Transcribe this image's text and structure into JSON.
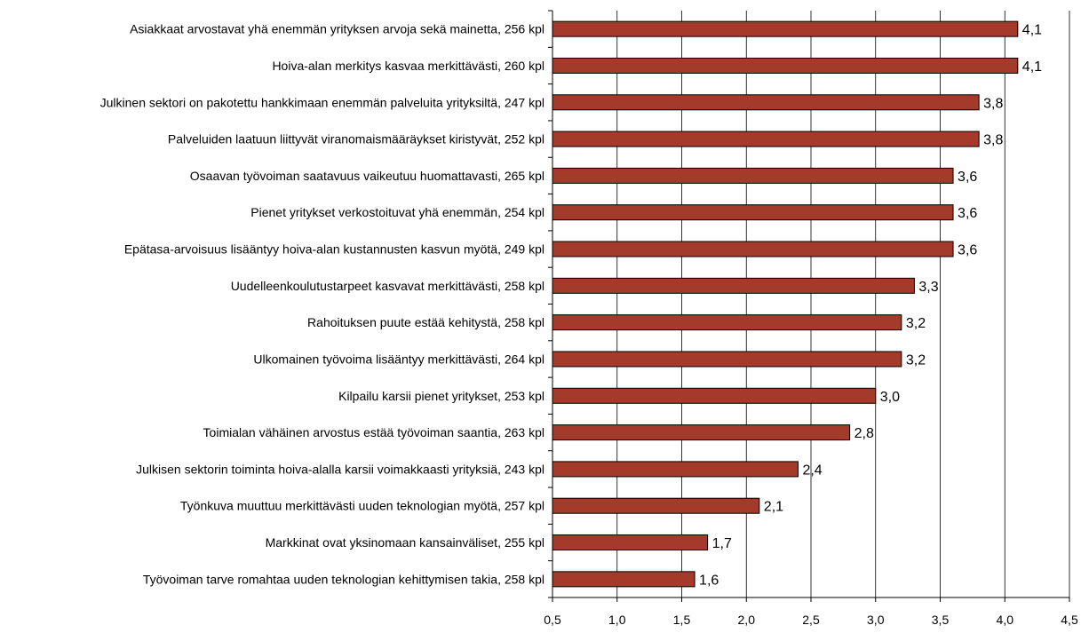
{
  "chart_data": {
    "type": "bar",
    "orientation": "horizontal",
    "title": "",
    "xlabel": "",
    "ylabel": "",
    "xlim": [
      0.5,
      4.5
    ],
    "x_ticks": [
      0.5,
      1.0,
      1.5,
      2.0,
      2.5,
      3.0,
      3.5,
      4.0,
      4.5
    ],
    "x_tick_labels": [
      "0,5",
      "1,0",
      "1,5",
      "2,0",
      "2,5",
      "3,0",
      "3,5",
      "4,0",
      "4,5"
    ],
    "grid": "vertical",
    "legend": "none",
    "bar_color": "#a33a2a",
    "bar_edge_color": "#000000",
    "categories": [
      "Asiakkaat arvostavat yhä enemmän yrityksen arvoja sekä mainetta, 256 kpl",
      "Hoiva-alan merkitys kasvaa merkittävästi, 260 kpl",
      "Julkinen sektori on pakotettu hankkimaan enemmän palveluita yrityksiltä, 247 kpl",
      "Palveluiden laatuun liittyvät viranomaismääräykset kiristyvät, 252 kpl",
      "Osaavan työvoiman saatavuus vaikeutuu huomattavasti, 265 kpl",
      "Pienet yritykset verkostoituvat yhä enemmän, 254 kpl",
      "Epätasa-arvoisuus lisääntyy hoiva-alan kustannusten kasvun myötä, 249 kpl",
      "Uudelleenkoulutustarpeet kasvavat merkittävästi, 258 kpl",
      "Rahoituksen puute estää kehitystä, 258 kpl",
      "Ulkomainen työvoima lisääntyy merkittävästi, 264 kpl",
      "Kilpailu karsii pienet yritykset, 253 kpl",
      "Toimialan vähäinen arvostus estää työvoiman saantia, 263 kpl",
      "Julkisen sektorin toiminta hoiva-alalla karsii voimakkaasti yrityksiä, 243 kpl",
      "Työnkuva muuttuu merkittävästi uuden teknologian myötä, 257 kpl",
      "Markkinat ovat yksinomaan kansainväliset, 255 kpl",
      "Työvoiman tarve romahtaa uuden teknologian kehittymisen takia, 258 kpl"
    ],
    "values": [
      4.1,
      4.1,
      3.8,
      3.8,
      3.6,
      3.6,
      3.6,
      3.3,
      3.2,
      3.2,
      3.0,
      2.8,
      2.4,
      2.1,
      1.7,
      1.6
    ],
    "value_labels": [
      "4,1",
      "4,1",
      "3,8",
      "3,8",
      "3,6",
      "3,6",
      "3,6",
      "3,3",
      "3,2",
      "3,2",
      "3,0",
      "2,8",
      "2,4",
      "2,1",
      "1,7",
      "1,6"
    ]
  }
}
